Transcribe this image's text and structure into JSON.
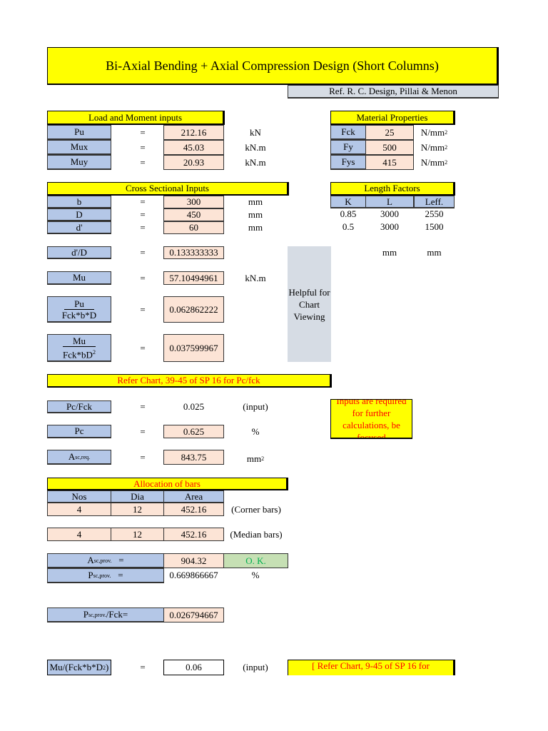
{
  "title": "Bi-Axial Bending + Axial Compression Design (Short Columns)",
  "reference": "Ref. R. C. Design, Pillai & Menon",
  "load": {
    "header": "Load and Moment inputs",
    "rows": [
      {
        "label": "Pu",
        "eq": "=",
        "value": "212.16",
        "unit": "kN"
      },
      {
        "label": "Mux",
        "eq": "=",
        "value": "45.03",
        "unit": "kN.m"
      },
      {
        "label": "Muy",
        "eq": "=",
        "value": "20.93",
        "unit": "kN.m"
      }
    ]
  },
  "material": {
    "header": "Material Properties",
    "unit": "N/mm",
    "unit_sup": "2",
    "rows": [
      {
        "label": "Fck",
        "value": "25"
      },
      {
        "label": "Fy",
        "value": "500"
      },
      {
        "label": "Fys",
        "value": "415"
      }
    ]
  },
  "cross": {
    "header": "Cross Sectional Inputs",
    "rows": [
      {
        "label": "b",
        "eq": "=",
        "value": "300",
        "unit": "mm"
      },
      {
        "label": "D",
        "eq": "=",
        "value": "450",
        "unit": "mm"
      },
      {
        "label": "d'",
        "eq": "=",
        "value": "60",
        "unit": "mm"
      }
    ]
  },
  "length": {
    "header": "Length Factors",
    "cols": [
      "K",
      "L",
      "Leff."
    ],
    "rows": [
      [
        "0.85",
        "3000",
        "2550"
      ],
      [
        "0.5",
        "3000",
        "1500"
      ]
    ],
    "units": [
      "mm",
      "mm"
    ]
  },
  "calc": {
    "dD": {
      "label": "d'/D",
      "eq": "=",
      "value": "0.133333333"
    },
    "mu": {
      "label": "Mu",
      "eq": "=",
      "value": "57.10494961",
      "unit": "kN.m"
    },
    "pu_ratio": {
      "num": "Pu",
      "den": "Fck*b*D",
      "eq": "=",
      "value": "0.062862222"
    },
    "mu_ratio": {
      "num": "Mu",
      "den": "Fck*bD",
      "den_sup": "2",
      "eq": "=",
      "value": "0.037599967"
    }
  },
  "helpful": "Helpful for Chart Viewing",
  "refer_chart": "Refer Chart, 39-45 of SP 16 for Pc/fck",
  "pc": {
    "pcfck": {
      "label": "Pc/Fck",
      "eq": "=",
      "value": "0.025",
      "unit": "(input)"
    },
    "pc": {
      "label": "Pc",
      "eq": "=",
      "value": "0.625",
      "unit": "%"
    },
    "asc": {
      "label": "A",
      "label_sub": "sc,req.",
      "eq": "=",
      "value": "843.75",
      "unit": "mm",
      "unit_sup": "2"
    }
  },
  "note": "Inputs are required for further calculations, be focused",
  "bars": {
    "header": "Allocation of bars",
    "cols": [
      "Nos",
      "Dia",
      "Area"
    ],
    "corner": {
      "values": [
        "4",
        "12",
        "452.16"
      ],
      "label": "(Corner bars)"
    },
    "median": {
      "values": [
        "4",
        "12",
        "452.16"
      ],
      "label": "(Median bars)"
    }
  },
  "prov": {
    "asc": {
      "label": "A",
      "sub": "sc,prov.",
      "eq": "=",
      "value": "904.32",
      "status": "O. K."
    },
    "psc": {
      "label": "P",
      "sub": "sc,prov.",
      "eq": "=",
      "value": "0.669866667",
      "unit": "%"
    },
    "pscfck": {
      "label": "P",
      "sub": "sc,prov.",
      "suffix": " /Fck=",
      "value": "0.026794667"
    }
  },
  "mu_final": {
    "label": "Mu/(Fck*b*D",
    "sup": "2",
    "close": ")",
    "eq": "=",
    "value": "0.06",
    "unit": "(input)",
    "refer": "[ Refer Chart, 9-45 of SP 16 for"
  }
}
